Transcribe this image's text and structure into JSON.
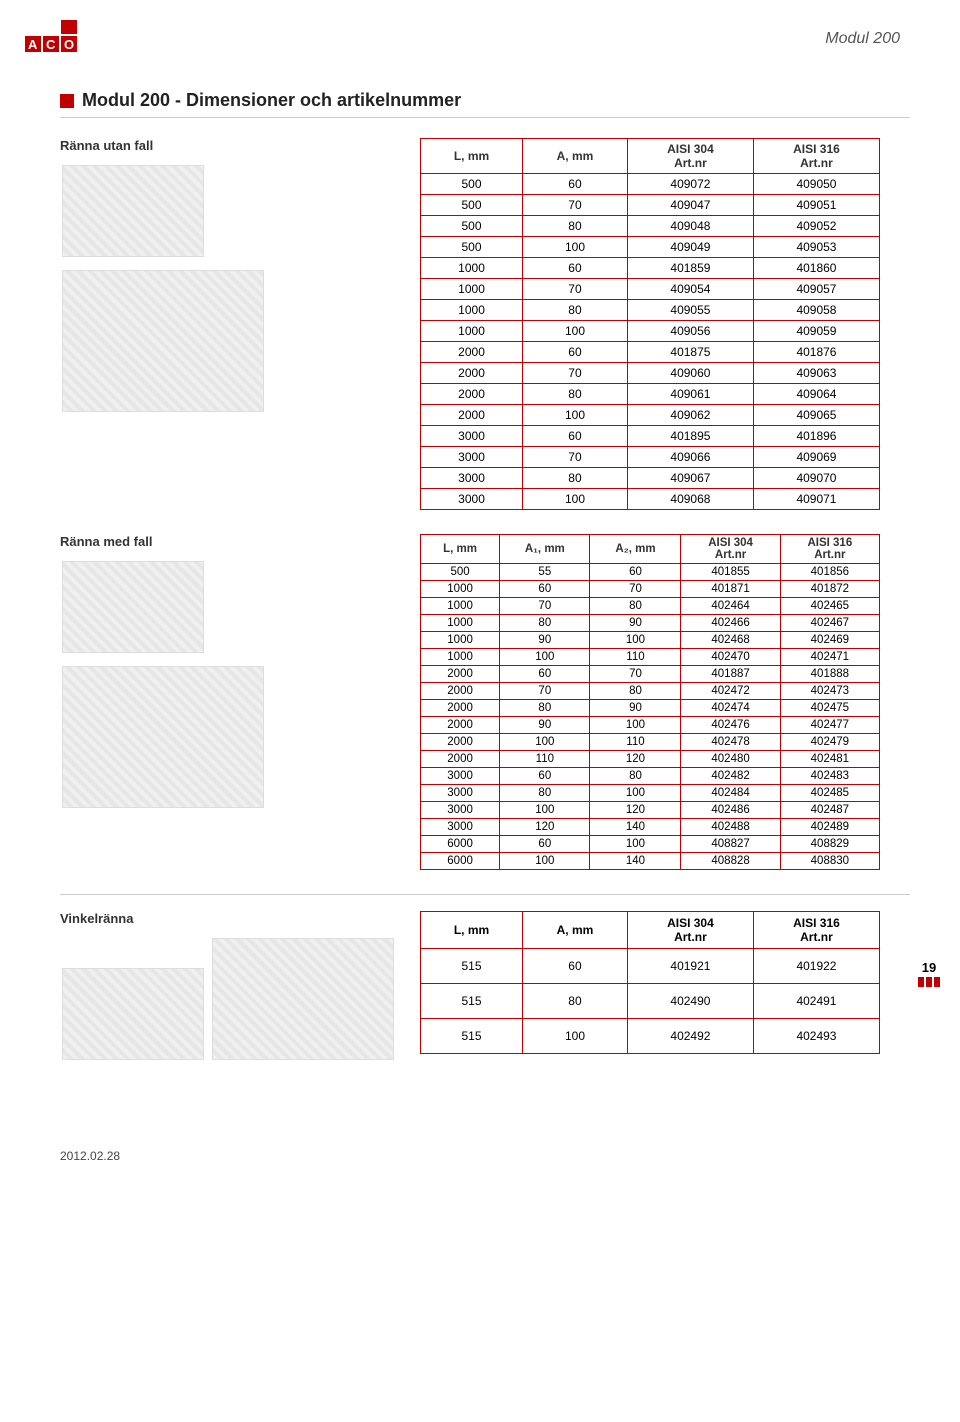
{
  "header": {
    "brand_text": "ACO",
    "brand_bg": "#c00000",
    "brand_fg": "#ffffff",
    "module_title": "Modul 200",
    "page_title": "Modul 200 - Dimensioner och artikelnummer",
    "square_color": "#c00000"
  },
  "page_number": "19",
  "footer_date": "2012.02.28",
  "section1": {
    "label": "Ränna utan fall",
    "columns": [
      "L, mm",
      "A, mm",
      "AISI 304 Art.nr",
      "AISI 316 Art.nr"
    ],
    "rows": [
      [
        "500",
        "60",
        "409072",
        "409050"
      ],
      [
        "500",
        "70",
        "409047",
        "409051"
      ],
      [
        "500",
        "80",
        "409048",
        "409052"
      ],
      [
        "500",
        "100",
        "409049",
        "409053"
      ],
      [
        "1000",
        "60",
        "401859",
        "401860"
      ],
      [
        "1000",
        "70",
        "409054",
        "409057"
      ],
      [
        "1000",
        "80",
        "409055",
        "409058"
      ],
      [
        "1000",
        "100",
        "409056",
        "409059"
      ],
      [
        "2000",
        "60",
        "401875",
        "401876"
      ],
      [
        "2000",
        "70",
        "409060",
        "409063"
      ],
      [
        "2000",
        "80",
        "409061",
        "409064"
      ],
      [
        "2000",
        "100",
        "409062",
        "409065"
      ],
      [
        "3000",
        "60",
        "401895",
        "401896"
      ],
      [
        "3000",
        "70",
        "409066",
        "409069"
      ],
      [
        "3000",
        "80",
        "409067",
        "409070"
      ],
      [
        "3000",
        "100",
        "409068",
        "409071"
      ]
    ],
    "border_color": "#c00000"
  },
  "section2": {
    "label": "Ränna med fall",
    "columns": [
      "L, mm",
      "A₁, mm",
      "A₂, mm",
      "AISI 304 Art.nr",
      "AISI 316 Art.nr"
    ],
    "rows": [
      [
        "500",
        "55",
        "60",
        "401855",
        "401856"
      ],
      [
        "1000",
        "60",
        "70",
        "401871",
        "401872"
      ],
      [
        "1000",
        "70",
        "80",
        "402464",
        "402465"
      ],
      [
        "1000",
        "80",
        "90",
        "402466",
        "402467"
      ],
      [
        "1000",
        "90",
        "100",
        "402468",
        "402469"
      ],
      [
        "1000",
        "100",
        "110",
        "402470",
        "402471"
      ],
      [
        "2000",
        "60",
        "70",
        "401887",
        "401888"
      ],
      [
        "2000",
        "70",
        "80",
        "402472",
        "402473"
      ],
      [
        "2000",
        "80",
        "90",
        "402474",
        "402475"
      ],
      [
        "2000",
        "90",
        "100",
        "402476",
        "402477"
      ],
      [
        "2000",
        "100",
        "110",
        "402478",
        "402479"
      ],
      [
        "2000",
        "110",
        "120",
        "402480",
        "402481"
      ],
      [
        "3000",
        "60",
        "80",
        "402482",
        "402483"
      ],
      [
        "3000",
        "80",
        "100",
        "402484",
        "402485"
      ],
      [
        "3000",
        "100",
        "120",
        "402486",
        "402487"
      ],
      [
        "3000",
        "120",
        "140",
        "402488",
        "402489"
      ],
      [
        "6000",
        "60",
        "100",
        "408827",
        "408829"
      ],
      [
        "6000",
        "100",
        "140",
        "408828",
        "408830"
      ]
    ],
    "border_color": "#c00000"
  },
  "section3": {
    "label": "Vinkelränna",
    "columns": [
      "L, mm",
      "A, mm",
      "AISI 304 Art.nr",
      "AISI 316 Art.nr"
    ],
    "rows": [
      [
        "515",
        "60",
        "401921",
        "401922"
      ],
      [
        "515",
        "80",
        "402490",
        "402491"
      ],
      [
        "515",
        "100",
        "402492",
        "402493"
      ]
    ],
    "border_color": "#c00000"
  }
}
